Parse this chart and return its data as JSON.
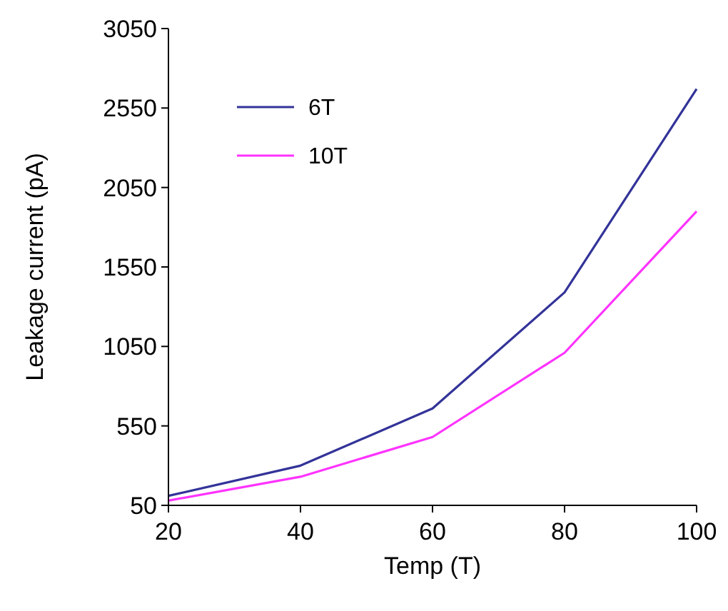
{
  "chart_data": {
    "type": "line",
    "xlabel": "Temp (T)",
    "ylabel": "Leakage current  (pA)",
    "x": [
      20,
      40,
      60,
      80,
      100
    ],
    "series": [
      {
        "name": "6T",
        "color": "#333399",
        "values": [
          110,
          300,
          660,
          1390,
          2670
        ]
      },
      {
        "name": "10T",
        "color": "#ff33ff",
        "values": [
          80,
          230,
          480,
          1010,
          1900
        ]
      }
    ],
    "xlim": [
      20,
      100
    ],
    "xticks": [
      20,
      40,
      60,
      80,
      100
    ],
    "ylim": [
      50,
      3050
    ],
    "yticks": [
      50,
      550,
      1050,
      1550,
      2050,
      2550,
      3050
    ],
    "legend": "top left",
    "grid": false,
    "marker": "none",
    "line_style": "solid"
  }
}
